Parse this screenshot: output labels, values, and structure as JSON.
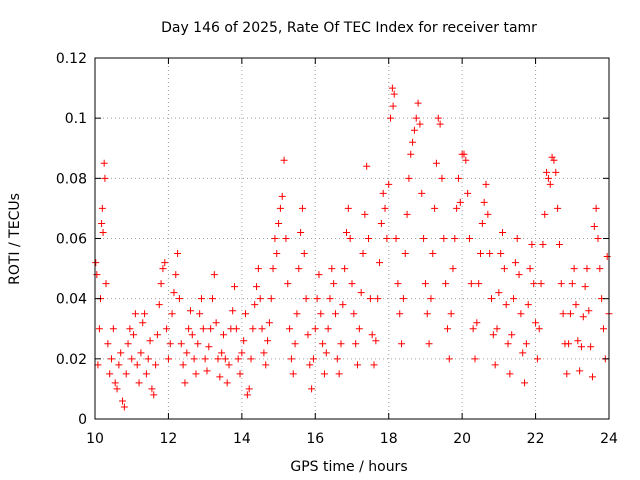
{
  "chart_data": {
    "type": "scatter",
    "title": "Day 146 of 2025, Rate Of TEC Index for receiver tamr",
    "xlabel": "GPS time / hours",
    "ylabel": "ROTI / TECUs",
    "xlim": [
      10,
      24
    ],
    "ylim": [
      0,
      0.12
    ],
    "x_ticks": [
      {
        "value": 10,
        "label": "10"
      },
      {
        "value": 12,
        "label": "12"
      },
      {
        "value": 14,
        "label": "14"
      },
      {
        "value": 16,
        "label": "16"
      },
      {
        "value": 18,
        "label": "18"
      },
      {
        "value": 20,
        "label": "20"
      },
      {
        "value": 22,
        "label": "22"
      },
      {
        "value": 24,
        "label": "24"
      }
    ],
    "y_ticks": [
      {
        "value": 0,
        "label": "0"
      },
      {
        "value": 0.02,
        "label": "0.02"
      },
      {
        "value": 0.04,
        "label": "0.04"
      },
      {
        "value": 0.06,
        "label": "0.06"
      },
      {
        "value": 0.08,
        "label": "0.08"
      },
      {
        "value": 0.1,
        "label": "0.1"
      },
      {
        "value": 0.12,
        "label": "0.12"
      }
    ],
    "grid": true,
    "marker": "+",
    "color": "#ff0000",
    "series": [
      {
        "name": "ROTI",
        "points": [
          [
            10.02,
            0.052
          ],
          [
            10.05,
            0.048
          ],
          [
            10.08,
            0.018
          ],
          [
            10.12,
            0.03
          ],
          [
            10.15,
            0.04
          ],
          [
            10.18,
            0.065
          ],
          [
            10.2,
            0.07
          ],
          [
            10.22,
            0.062
          ],
          [
            10.25,
            0.085
          ],
          [
            10.27,
            0.08
          ],
          [
            10.3,
            0.045
          ],
          [
            10.35,
            0.025
          ],
          [
            10.4,
            0.015
          ],
          [
            10.45,
            0.02
          ],
          [
            10.5,
            0.03
          ],
          [
            10.55,
            0.012
          ],
          [
            10.6,
            0.01
          ],
          [
            10.65,
            0.018
          ],
          [
            10.7,
            0.022
          ],
          [
            10.75,
            0.006
          ],
          [
            10.8,
            0.004
          ],
          [
            10.85,
            0.015
          ],
          [
            10.9,
            0.025
          ],
          [
            10.95,
            0.03
          ],
          [
            11.0,
            0.02
          ],
          [
            11.05,
            0.028
          ],
          [
            11.1,
            0.035
          ],
          [
            11.15,
            0.018
          ],
          [
            11.2,
            0.012
          ],
          [
            11.25,
            0.022
          ],
          [
            11.3,
            0.032
          ],
          [
            11.35,
            0.035
          ],
          [
            11.4,
            0.015
          ],
          [
            11.45,
            0.02
          ],
          [
            11.5,
            0.026
          ],
          [
            11.55,
            0.01
          ],
          [
            11.6,
            0.008
          ],
          [
            11.65,
            0.018
          ],
          [
            11.7,
            0.028
          ],
          [
            11.75,
            0.038
          ],
          [
            11.8,
            0.045
          ],
          [
            11.85,
            0.05
          ],
          [
            11.9,
            0.052
          ],
          [
            11.95,
            0.03
          ],
          [
            12.0,
            0.02
          ],
          [
            12.05,
            0.025
          ],
          [
            12.1,
            0.035
          ],
          [
            12.15,
            0.042
          ],
          [
            12.2,
            0.048
          ],
          [
            12.25,
            0.055
          ],
          [
            12.3,
            0.04
          ],
          [
            12.35,
            0.025
          ],
          [
            12.4,
            0.018
          ],
          [
            12.45,
            0.012
          ],
          [
            12.5,
            0.022
          ],
          [
            12.55,
            0.03
          ],
          [
            12.6,
            0.036
          ],
          [
            12.65,
            0.028
          ],
          [
            12.7,
            0.02
          ],
          [
            12.75,
            0.015
          ],
          [
            12.8,
            0.025
          ],
          [
            12.85,
            0.035
          ],
          [
            12.9,
            0.04
          ],
          [
            12.95,
            0.03
          ],
          [
            13.0,
            0.02
          ],
          [
            13.05,
            0.016
          ],
          [
            13.1,
            0.024
          ],
          [
            13.15,
            0.03
          ],
          [
            13.2,
            0.04
          ],
          [
            13.25,
            0.048
          ],
          [
            13.3,
            0.032
          ],
          [
            13.35,
            0.02
          ],
          [
            13.4,
            0.014
          ],
          [
            13.45,
            0.022
          ],
          [
            13.5,
            0.028
          ],
          [
            13.55,
            0.02
          ],
          [
            13.6,
            0.012
          ],
          [
            13.65,
            0.018
          ],
          [
            13.7,
            0.03
          ],
          [
            13.75,
            0.036
          ],
          [
            13.8,
            0.044
          ],
          [
            13.85,
            0.03
          ],
          [
            13.9,
            0.02
          ],
          [
            13.95,
            0.015
          ],
          [
            14.0,
            0.022
          ],
          [
            14.05,
            0.026
          ],
          [
            14.1,
            0.035
          ],
          [
            14.15,
            0.008
          ],
          [
            14.2,
            0.01
          ],
          [
            14.25,
            0.02
          ],
          [
            14.3,
            0.03
          ],
          [
            14.35,
            0.038
          ],
          [
            14.4,
            0.044
          ],
          [
            14.45,
            0.05
          ],
          [
            14.5,
            0.04
          ],
          [
            14.55,
            0.03
          ],
          [
            14.6,
            0.022
          ],
          [
            14.65,
            0.018
          ],
          [
            14.7,
            0.026
          ],
          [
            14.75,
            0.032
          ],
          [
            14.8,
            0.04
          ],
          [
            14.85,
            0.05
          ],
          [
            14.9,
            0.06
          ],
          [
            14.95,
            0.055
          ],
          [
            15.0,
            0.065
          ],
          [
            15.05,
            0.07
          ],
          [
            15.1,
            0.074
          ],
          [
            15.15,
            0.086
          ],
          [
            15.2,
            0.06
          ],
          [
            15.25,
            0.045
          ],
          [
            15.3,
            0.03
          ],
          [
            15.35,
            0.02
          ],
          [
            15.4,
            0.015
          ],
          [
            15.45,
            0.025
          ],
          [
            15.5,
            0.035
          ],
          [
            15.55,
            0.05
          ],
          [
            15.6,
            0.062
          ],
          [
            15.65,
            0.07
          ],
          [
            15.7,
            0.055
          ],
          [
            15.75,
            0.04
          ],
          [
            15.8,
            0.028
          ],
          [
            15.85,
            0.018
          ],
          [
            15.9,
            0.01
          ],
          [
            15.95,
            0.02
          ],
          [
            16.0,
            0.03
          ],
          [
            16.05,
            0.04
          ],
          [
            16.1,
            0.048
          ],
          [
            16.15,
            0.035
          ],
          [
            16.2,
            0.025
          ],
          [
            16.25,
            0.015
          ],
          [
            16.3,
            0.022
          ],
          [
            16.35,
            0.03
          ],
          [
            16.4,
            0.04
          ],
          [
            16.45,
            0.05
          ],
          [
            16.5,
            0.045
          ],
          [
            16.55,
            0.035
          ],
          [
            16.6,
            0.02
          ],
          [
            16.65,
            0.015
          ],
          [
            16.7,
            0.025
          ],
          [
            16.75,
            0.038
          ],
          [
            16.8,
            0.05
          ],
          [
            16.85,
            0.062
          ],
          [
            16.9,
            0.07
          ],
          [
            16.95,
            0.06
          ],
          [
            17.0,
            0.045
          ],
          [
            17.05,
            0.035
          ],
          [
            17.1,
            0.025
          ],
          [
            17.15,
            0.018
          ],
          [
            17.2,
            0.03
          ],
          [
            17.25,
            0.042
          ],
          [
            17.3,
            0.055
          ],
          [
            17.35,
            0.068
          ],
          [
            17.4,
            0.084
          ],
          [
            17.45,
            0.06
          ],
          [
            17.5,
            0.04
          ],
          [
            17.55,
            0.028
          ],
          [
            17.6,
            0.018
          ],
          [
            17.65,
            0.026
          ],
          [
            17.7,
            0.04
          ],
          [
            17.75,
            0.052
          ],
          [
            17.8,
            0.065
          ],
          [
            17.85,
            0.075
          ],
          [
            17.9,
            0.07
          ],
          [
            17.95,
            0.06
          ],
          [
            18.0,
            0.078
          ],
          [
            18.05,
            0.1
          ],
          [
            18.1,
            0.11
          ],
          [
            18.12,
            0.104
          ],
          [
            18.15,
            0.108
          ],
          [
            18.2,
            0.06
          ],
          [
            18.25,
            0.045
          ],
          [
            18.3,
            0.035
          ],
          [
            18.35,
            0.025
          ],
          [
            18.4,
            0.04
          ],
          [
            18.45,
            0.055
          ],
          [
            18.5,
            0.068
          ],
          [
            18.55,
            0.08
          ],
          [
            18.6,
            0.088
          ],
          [
            18.65,
            0.092
          ],
          [
            18.7,
            0.096
          ],
          [
            18.75,
            0.1
          ],
          [
            18.8,
            0.105
          ],
          [
            18.85,
            0.098
          ],
          [
            18.9,
            0.075
          ],
          [
            18.95,
            0.06
          ],
          [
            19.0,
            0.045
          ],
          [
            19.05,
            0.035
          ],
          [
            19.1,
            0.025
          ],
          [
            19.15,
            0.04
          ],
          [
            19.2,
            0.055
          ],
          [
            19.25,
            0.07
          ],
          [
            19.3,
            0.085
          ],
          [
            19.35,
            0.1
          ],
          [
            19.4,
            0.098
          ],
          [
            19.45,
            0.08
          ],
          [
            19.5,
            0.06
          ],
          [
            19.55,
            0.045
          ],
          [
            19.6,
            0.03
          ],
          [
            19.65,
            0.02
          ],
          [
            19.7,
            0.035
          ],
          [
            19.75,
            0.05
          ],
          [
            19.8,
            0.06
          ],
          [
            19.85,
            0.07
          ],
          [
            19.9,
            0.08
          ],
          [
            19.95,
            0.072
          ],
          [
            20.0,
            0.088
          ],
          [
            20.05,
            0.088
          ],
          [
            20.1,
            0.086
          ],
          [
            20.15,
            0.075
          ],
          [
            20.2,
            0.06
          ],
          [
            20.25,
            0.045
          ],
          [
            20.3,
            0.03
          ],
          [
            20.35,
            0.02
          ],
          [
            20.4,
            0.032
          ],
          [
            20.45,
            0.045
          ],
          [
            20.5,
            0.055
          ],
          [
            20.55,
            0.065
          ],
          [
            20.6,
            0.072
          ],
          [
            20.65,
            0.078
          ],
          [
            20.7,
            0.068
          ],
          [
            20.75,
            0.055
          ],
          [
            20.8,
            0.04
          ],
          [
            20.85,
            0.028
          ],
          [
            20.9,
            0.018
          ],
          [
            20.95,
            0.03
          ],
          [
            21.0,
            0.042
          ],
          [
            21.05,
            0.055
          ],
          [
            21.1,
            0.062
          ],
          [
            21.15,
            0.05
          ],
          [
            21.2,
            0.038
          ],
          [
            21.25,
            0.025
          ],
          [
            21.3,
            0.015
          ],
          [
            21.35,
            0.028
          ],
          [
            21.4,
            0.04
          ],
          [
            21.45,
            0.052
          ],
          [
            21.5,
            0.06
          ],
          [
            21.55,
            0.048
          ],
          [
            21.6,
            0.035
          ],
          [
            21.65,
            0.022
          ],
          [
            21.7,
            0.012
          ],
          [
            21.75,
            0.025
          ],
          [
            21.8,
            0.038
          ],
          [
            21.85,
            0.05
          ],
          [
            21.9,
            0.058
          ],
          [
            21.95,
            0.045
          ],
          [
            22.0,
            0.032
          ],
          [
            22.05,
            0.02
          ],
          [
            22.1,
            0.03
          ],
          [
            22.15,
            0.045
          ],
          [
            22.2,
            0.058
          ],
          [
            22.25,
            0.068
          ],
          [
            22.3,
            0.082
          ],
          [
            22.35,
            0.08
          ],
          [
            22.4,
            0.078
          ],
          [
            22.45,
            0.087
          ],
          [
            22.5,
            0.086
          ],
          [
            22.55,
            0.082
          ],
          [
            22.6,
            0.07
          ],
          [
            22.65,
            0.058
          ],
          [
            22.7,
            0.045
          ],
          [
            22.75,
            0.035
          ],
          [
            22.8,
            0.025
          ],
          [
            22.85,
            0.015
          ],
          [
            22.9,
            0.025
          ],
          [
            22.95,
            0.035
          ],
          [
            23.0,
            0.045
          ],
          [
            23.05,
            0.05
          ],
          [
            23.1,
            0.038
          ],
          [
            23.15,
            0.026
          ],
          [
            23.2,
            0.016
          ],
          [
            23.25,
            0.024
          ],
          [
            23.3,
            0.034
          ],
          [
            23.35,
            0.044
          ],
          [
            23.4,
            0.05
          ],
          [
            23.45,
            0.036
          ],
          [
            23.5,
            0.024
          ],
          [
            23.55,
            0.014
          ],
          [
            23.6,
            0.064
          ],
          [
            23.65,
            0.07
          ],
          [
            23.7,
            0.06
          ],
          [
            23.75,
            0.05
          ],
          [
            23.8,
            0.04
          ],
          [
            23.85,
            0.03
          ],
          [
            23.9,
            0.02
          ],
          [
            23.95,
            0.054
          ],
          [
            24.0,
            0.035
          ]
        ]
      }
    ]
  }
}
